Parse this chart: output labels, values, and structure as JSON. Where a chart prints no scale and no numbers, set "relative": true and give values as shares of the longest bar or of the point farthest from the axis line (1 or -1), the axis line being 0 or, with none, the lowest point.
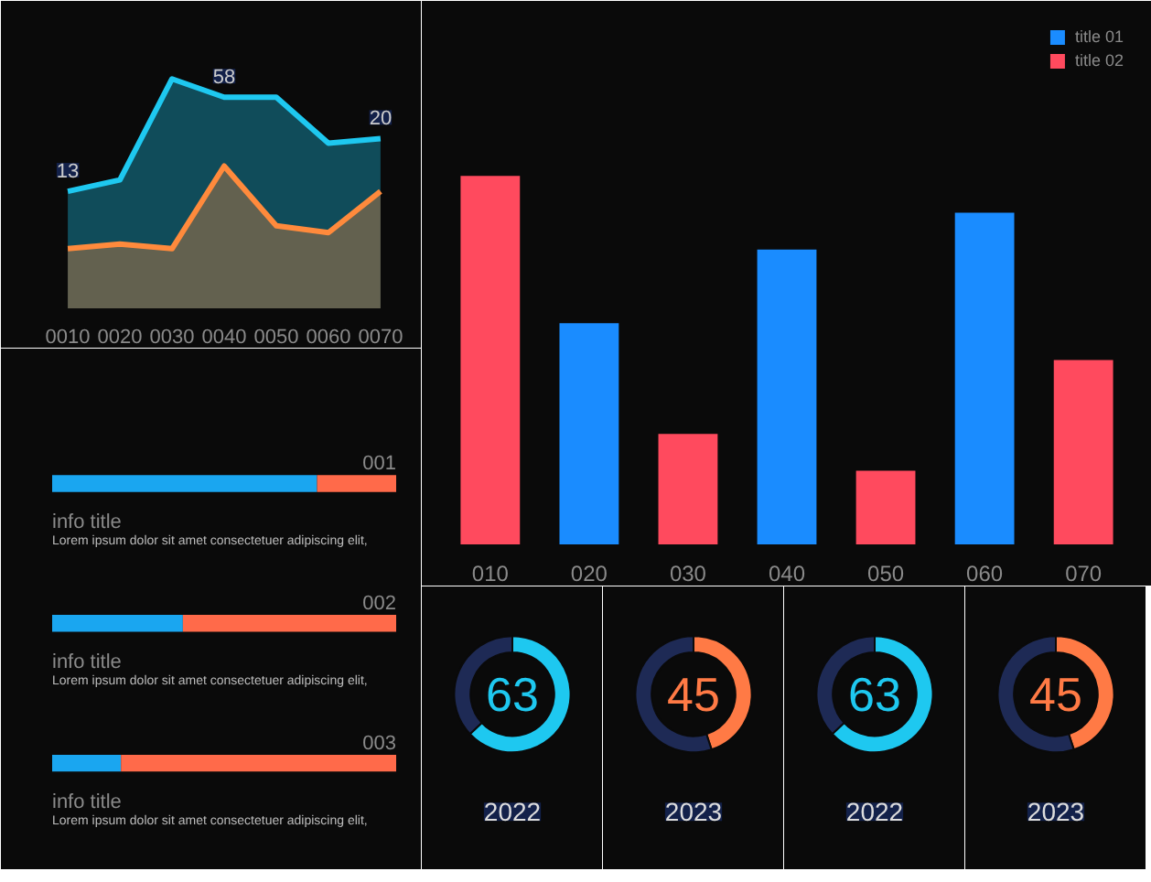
{
  "chart_data": [
    {
      "type": "area",
      "relative": true,
      "categories": [
        "0010",
        "0020",
        "0030",
        "0040",
        "0050",
        "0060",
        "0070"
      ],
      "series": [
        {
          "color": "#1ec8f0",
          "values": [
            0.51,
            0.56,
            1,
            0.92,
            0.92,
            0.72,
            0.74
          ]
        },
        {
          "color": "#ff8a3c",
          "values": [
            0.26,
            0.28,
            0.26,
            0.62,
            0.36,
            0.33,
            0.51
          ]
        }
      ],
      "annotations": [
        {
          "text": "13",
          "x": "0010"
        },
        {
          "text": "58",
          "x": "0040"
        },
        {
          "text": "20",
          "x": "0070"
        }
      ]
    },
    {
      "type": "bar",
      "relative": true,
      "categories": [
        "010",
        "020",
        "030",
        "040",
        "050",
        "060",
        "070"
      ],
      "legend": "top right",
      "series": [
        {
          "name": "title 01",
          "color": "#1a8cff",
          "values": [
            null,
            0.6,
            null,
            0.8,
            null,
            0.9,
            null
          ]
        },
        {
          "name": "title 02",
          "color": "#ff4a5e",
          "values": [
            1,
            null,
            0.3,
            null,
            0.2,
            null,
            0.5
          ]
        }
      ]
    },
    {
      "type": "donut",
      "categories": [
        null,
        null
      ],
      "values": [
        63,
        37
      ],
      "colors": [
        "#1ec8f0",
        "#1e2a55"
      ],
      "title": "63",
      "annotations": [
        "2022"
      ]
    },
    {
      "type": "donut",
      "categories": [
        null,
        null
      ],
      "values": [
        45,
        55
      ],
      "colors": [
        "#ff7a45",
        "#1e2a55"
      ],
      "title": "45",
      "annotations": [
        "2023"
      ]
    },
    {
      "type": "donut",
      "categories": [
        null,
        null
      ],
      "values": [
        63,
        37
      ],
      "colors": [
        "#1ec8f0",
        "#1e2a55"
      ],
      "title": "63",
      "annotations": [
        "2022"
      ]
    },
    {
      "type": "donut",
      "categories": [
        null,
        null
      ],
      "values": [
        45,
        55
      ],
      "colors": [
        "#ff7a45",
        "#1e2a55"
      ],
      "title": "45",
      "annotations": [
        "2023"
      ]
    },
    {
      "type": "bar",
      "orientation": "horizontal",
      "stacked": true,
      "relative": true,
      "categories": [
        "001",
        "002",
        "003"
      ],
      "series": [
        {
          "color": "#1aa6f0",
          "values": [
            0.77,
            0.38,
            0.2
          ]
        },
        {
          "color": "#ff6a4a",
          "values": [
            0.23,
            0.62,
            0.8
          ]
        }
      ],
      "annotations": [
        "info title",
        "Lorem ipsum dolor sit amet consectetuer adipiscing elit,",
        "info title",
        "Lorem ipsum dolor sit amet consectetuer adipiscing elit,",
        "info title",
        "Lorem ipsum dolor sit amet consectetuer adipiscing elit,"
      ]
    }
  ]
}
